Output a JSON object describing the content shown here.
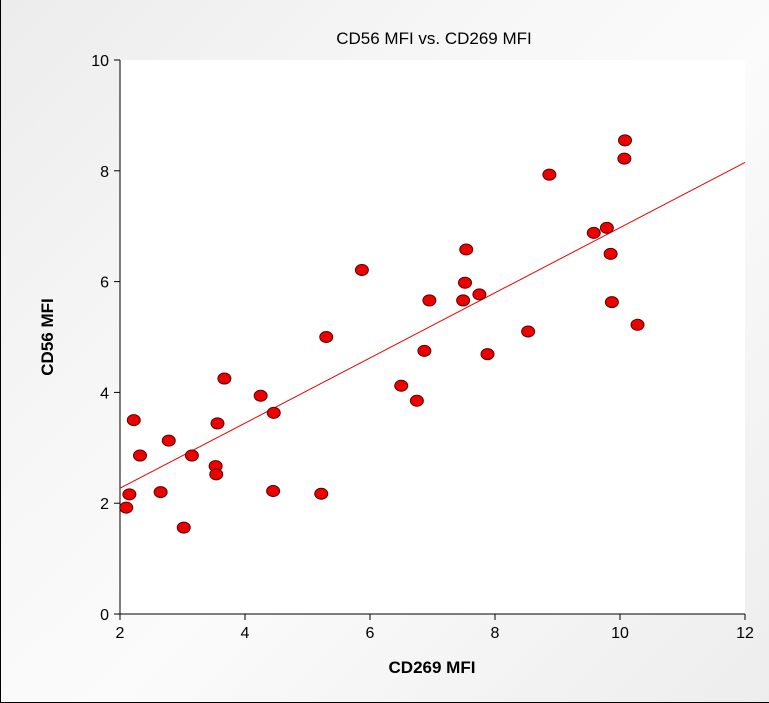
{
  "chart_data": {
    "type": "scatter",
    "title": "CD56 MFI vs. CD269 MFI",
    "xlabel": "CD269 MFI",
    "ylabel": "CD56 MFI",
    "xlim": [
      2,
      12
    ],
    "ylim": [
      0,
      10
    ],
    "xticks": [
      2,
      4,
      6,
      8,
      10,
      12
    ],
    "yticks": [
      0,
      2,
      4,
      6,
      8,
      10
    ],
    "grid": false,
    "legend": "none",
    "colors": {
      "point": "#ee0000",
      "point_outline": "#5a0000",
      "trendline": "#ee0000"
    },
    "series": [
      {
        "points": [
          [
            2.1,
            1.92
          ],
          [
            2.15,
            2.16
          ],
          [
            2.22,
            3.5
          ],
          [
            2.32,
            2.86
          ],
          [
            2.65,
            2.2
          ],
          [
            2.78,
            3.13
          ],
          [
            3.02,
            1.56
          ],
          [
            3.15,
            2.86
          ],
          [
            3.53,
            2.67
          ],
          [
            3.54,
            2.52
          ],
          [
            3.56,
            3.44
          ],
          [
            3.67,
            4.25
          ],
          [
            4.25,
            3.94
          ],
          [
            4.45,
            2.22
          ],
          [
            4.46,
            3.63
          ],
          [
            5.22,
            2.17
          ],
          [
            5.3,
            5.0
          ],
          [
            5.87,
            6.21
          ],
          [
            6.5,
            4.12
          ],
          [
            6.75,
            3.85
          ],
          [
            6.87,
            4.75
          ],
          [
            6.95,
            5.66
          ],
          [
            7.49,
            5.66
          ],
          [
            7.52,
            5.98
          ],
          [
            7.54,
            6.58
          ],
          [
            7.75,
            5.77
          ],
          [
            7.88,
            4.69
          ],
          [
            8.53,
            5.1
          ],
          [
            8.87,
            7.93
          ],
          [
            9.58,
            6.88
          ],
          [
            9.79,
            6.97
          ],
          [
            9.85,
            6.5
          ],
          [
            9.87,
            5.63
          ],
          [
            10.07,
            8.22
          ],
          [
            10.08,
            8.55
          ],
          [
            10.28,
            5.22
          ]
        ]
      }
    ],
    "trendline": {
      "x": [
        2,
        12
      ],
      "y": [
        2.27,
        8.15
      ]
    }
  }
}
